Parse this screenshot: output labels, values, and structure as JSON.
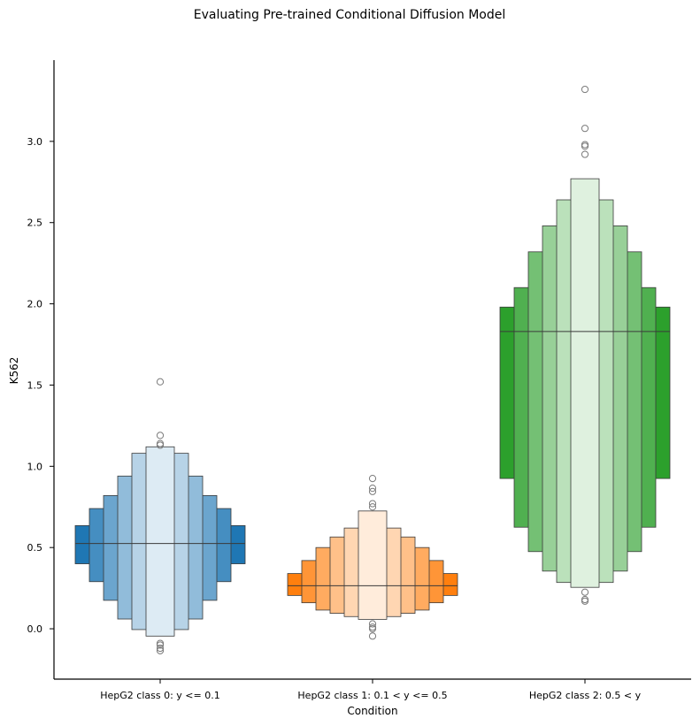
{
  "chart_data": {
    "type": "boxen",
    "title": "Evaluating Pre-trained Conditional Diffusion Model",
    "xlabel": "Condition",
    "ylabel": "K562",
    "ylim": [
      -0.31,
      3.5
    ],
    "yticks": [
      0.0,
      0.5,
      1.0,
      1.5,
      2.0,
      2.5,
      3.0
    ],
    "ytick_labels": [
      "0.0",
      "0.5",
      "1.0",
      "1.5",
      "2.0",
      "2.5",
      "3.0"
    ],
    "grid": false,
    "categories": [
      "HepG2 class 0: y <= 0.1",
      "HepG2 class 1: 0.1 < y <= 0.5",
      "HepG2 class 2: 0.5 < y"
    ],
    "series": [
      {
        "color": "#1f77b4",
        "median": 0.525,
        "boxes": [
          [
            0.4,
            0.635
          ],
          [
            0.29,
            0.74
          ],
          [
            0.175,
            0.82
          ],
          [
            0.06,
            0.94
          ],
          [
            -0.005,
            1.08
          ],
          [
            -0.045,
            1.12
          ]
        ],
        "outliers": [
          1.52,
          1.19,
          1.14,
          1.13,
          -0.09,
          -0.1,
          -0.12,
          -0.135
        ]
      },
      {
        "color": "#ff7f0e",
        "median": 0.265,
        "boxes": [
          [
            0.205,
            0.34
          ],
          [
            0.16,
            0.42
          ],
          [
            0.115,
            0.5
          ],
          [
            0.095,
            0.565
          ],
          [
            0.075,
            0.62
          ],
          [
            0.058,
            0.725
          ]
        ],
        "outliers": [
          0.925,
          0.865,
          0.845,
          0.77,
          0.75,
          0.03,
          0.01,
          0.0,
          -0.045
        ]
      },
      {
        "color": "#2ca02c",
        "median": 1.83,
        "boxes": [
          [
            0.925,
            1.98
          ],
          [
            0.625,
            2.1
          ],
          [
            0.475,
            2.32
          ],
          [
            0.355,
            2.48
          ],
          [
            0.285,
            2.64
          ],
          [
            0.255,
            2.77
          ]
        ],
        "outliers": [
          3.32,
          3.08,
          2.98,
          2.97,
          2.92,
          0.225,
          0.18,
          0.17
        ]
      }
    ]
  }
}
